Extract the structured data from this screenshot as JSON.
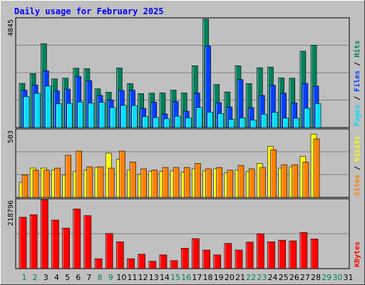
{
  "page": {
    "title": "Daily usage for February 2025"
  },
  "chart_data": [
    {
      "type": "bar",
      "panel": "pages-files-hits",
      "ymax_label": "4845",
      "ylabel_parts": [
        "Pages",
        "Files",
        "Hits"
      ],
      "colors": {
        "Pages": "#00E0FF",
        "Files": "#0040FF",
        "Hits": "#00805C"
      },
      "ylim": [
        0,
        4845
      ],
      "categories": [
        "1",
        "2",
        "3",
        "4",
        "5",
        "6",
        "7",
        "8",
        "9",
        "10",
        "11",
        "12",
        "13",
        "14",
        "15",
        "16",
        "17",
        "18",
        "19",
        "20",
        "21",
        "22",
        "23",
        "24",
        "25",
        "26",
        "27",
        "28",
        "29",
        "30",
        "31"
      ],
      "series": [
        {
          "name": "Hits",
          "values": [
            1950,
            2380,
            3700,
            2150,
            2180,
            2620,
            2600,
            1710,
            1560,
            2630,
            1940,
            1500,
            1520,
            1530,
            1650,
            1530,
            2730,
            4790,
            1900,
            1570,
            2730,
            1940,
            2640,
            2670,
            2190,
            2180,
            3370,
            3640,
            0,
            0,
            0
          ]
        },
        {
          "name": "Files",
          "values": [
            1650,
            1880,
            2510,
            1620,
            1700,
            2260,
            2070,
            1420,
            1220,
            1640,
            1650,
            850,
            1120,
            600,
            1150,
            720,
            1520,
            3600,
            1100,
            910,
            2120,
            880,
            1420,
            1870,
            1520,
            1090,
            1950,
            1830,
            0,
            0,
            0
          ]
        },
        {
          "name": "Pages",
          "values": [
            1360,
            1510,
            1830,
            1050,
            1070,
            1130,
            1080,
            1110,
            880,
            980,
            970,
            480,
            440,
            390,
            500,
            430,
            890,
            680,
            620,
            360,
            420,
            330,
            590,
            680,
            420,
            410,
            850,
            1060,
            0,
            0,
            0
          ]
        }
      ]
    },
    {
      "type": "bar",
      "panel": "sites-visits",
      "ymax_label": "503",
      "ylabel_parts": [
        "Sites",
        "Visits"
      ],
      "colors": {
        "Visits": "#FFFF00",
        "Sites": "#FF8000"
      },
      "ylim": [
        0,
        503
      ],
      "categories": [
        "1",
        "2",
        "3",
        "4",
        "5",
        "6",
        "7",
        "8",
        "9",
        "10",
        "11",
        "12",
        "13",
        "14",
        "15",
        "16",
        "17",
        "18",
        "19",
        "20",
        "21",
        "22",
        "23",
        "24",
        "25",
        "26",
        "27",
        "28",
        "29",
        "30",
        "31"
      ],
      "series": [
        {
          "name": "Visits",
          "values": [
            110,
            215,
            215,
            200,
            165,
            190,
            200,
            220,
            325,
            280,
            200,
            170,
            190,
            190,
            195,
            185,
            210,
            195,
            210,
            180,
            200,
            190,
            250,
            375,
            215,
            225,
            300,
            465,
            0,
            0,
            0
          ]
        },
        {
          "name": "Sites",
          "values": [
            165,
            200,
            200,
            215,
            310,
            340,
            225,
            225,
            215,
            340,
            260,
            210,
            200,
            220,
            220,
            220,
            250,
            210,
            220,
            200,
            235,
            210,
            220,
            350,
            240,
            240,
            260,
            430,
            0,
            0,
            0
          ]
        }
      ]
    },
    {
      "type": "bar",
      "panel": "kbytes",
      "ymax_label": "218796",
      "ylabel_parts": [
        "KBytes"
      ],
      "colors": {
        "KBytes": "#FF0000"
      },
      "ylim": [
        0,
        218796
      ],
      "categories": [
        "1",
        "2",
        "3",
        "4",
        "5",
        "6",
        "7",
        "8",
        "9",
        "10",
        "11",
        "12",
        "13",
        "14",
        "15",
        "16",
        "17",
        "18",
        "19",
        "20",
        "21",
        "22",
        "23",
        "24",
        "25",
        "26",
        "27",
        "28",
        "29",
        "30",
        "31"
      ],
      "series": [
        {
          "name": "KBytes",
          "values": [
            161000,
            169000,
            216000,
            152000,
            127000,
            187000,
            166000,
            31000,
            110000,
            84000,
            31000,
            45000,
            23000,
            43000,
            25000,
            64000,
            94000,
            58000,
            43000,
            79000,
            58000,
            83000,
            109000,
            84000,
            89000,
            87000,
            113000,
            93000,
            0,
            0,
            0
          ]
        }
      ]
    }
  ]
}
